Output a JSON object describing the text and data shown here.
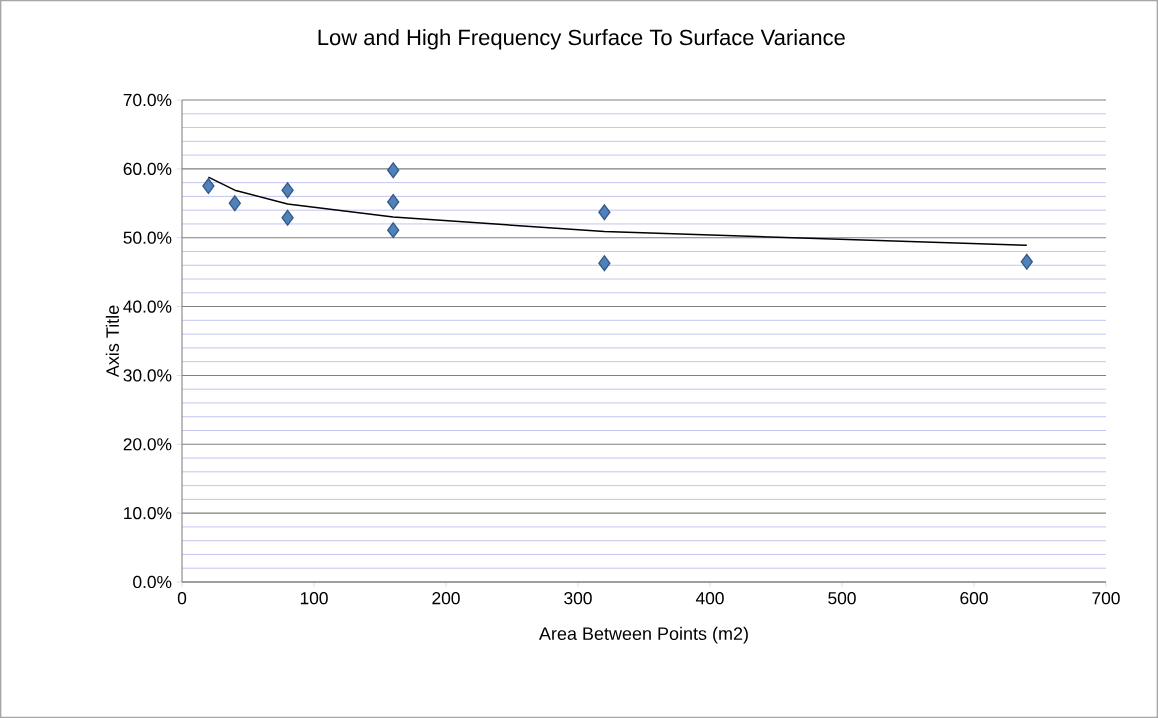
{
  "chart_data": {
    "type": "scatter",
    "title": "Low and High Frequency Surface To Surface Variance",
    "xlabel": "Area Between Points (m2)",
    "ylabel": "Axis Title",
    "series": [
      {
        "color": "#4f81bd",
        "marker": "diamond",
        "x": [
          20,
          40,
          80,
          80,
          160,
          160,
          160,
          320,
          320,
          640
        ],
        "values": [
          57.5,
          55.0,
          56.9,
          52.9,
          59.8,
          55.2,
          51.1,
          53.7,
          46.3,
          46.5
        ]
      },
      {
        "type": "line",
        "color": "#000000",
        "marker": "none",
        "x": [
          20,
          40,
          80,
          160,
          320,
          640
        ],
        "values": [
          58.8,
          56.9,
          54.9,
          53.0,
          50.9,
          48.9
        ]
      }
    ],
    "xlim": [
      0,
      700
    ],
    "xticks": [
      0,
      100,
      200,
      300,
      400,
      500,
      600,
      700
    ],
    "ylim": [
      0,
      70
    ],
    "yticks": [
      {
        "value": 0,
        "label": "0.0%"
      },
      {
        "value": 2,
        "label": null
      },
      {
        "value": 4,
        "label": null
      },
      {
        "value": 6,
        "label": null
      },
      {
        "value": 8,
        "label": null
      },
      {
        "value": 10,
        "label": "10.0%"
      },
      {
        "value": 12,
        "label": null
      },
      {
        "value": 14,
        "label": null
      },
      {
        "value": 16,
        "label": null
      },
      {
        "value": 18,
        "label": null
      },
      {
        "value": 20,
        "label": "20.0%"
      },
      {
        "value": 22,
        "label": null
      },
      {
        "value": 24,
        "label": null
      },
      {
        "value": 26,
        "label": null
      },
      {
        "value": 28,
        "label": null
      },
      {
        "value": 30,
        "label": "30.0%"
      },
      {
        "value": 32,
        "label": null
      },
      {
        "value": 34,
        "label": null
      },
      {
        "value": 36,
        "label": null
      },
      {
        "value": 38,
        "label": null
      },
      {
        "value": 40,
        "label": "40.0%"
      },
      {
        "value": 42,
        "label": null
      },
      {
        "value": 44,
        "label": null
      },
      {
        "value": 46,
        "label": null
      },
      {
        "value": 48,
        "label": null
      },
      {
        "value": 50,
        "label": "50.0%"
      },
      {
        "value": 52,
        "label": null
      },
      {
        "value": 54,
        "label": null
      },
      {
        "value": 56,
        "label": null
      },
      {
        "value": 58,
        "label": null
      },
      {
        "value": 60,
        "label": "60.0%"
      },
      {
        "value": 62,
        "label": null
      },
      {
        "value": 64,
        "label": null
      },
      {
        "value": 66,
        "label": null
      },
      {
        "value": 68,
        "label": null
      },
      {
        "value": 70,
        "label": "70.0%"
      }
    ],
    "grid": "y"
  }
}
